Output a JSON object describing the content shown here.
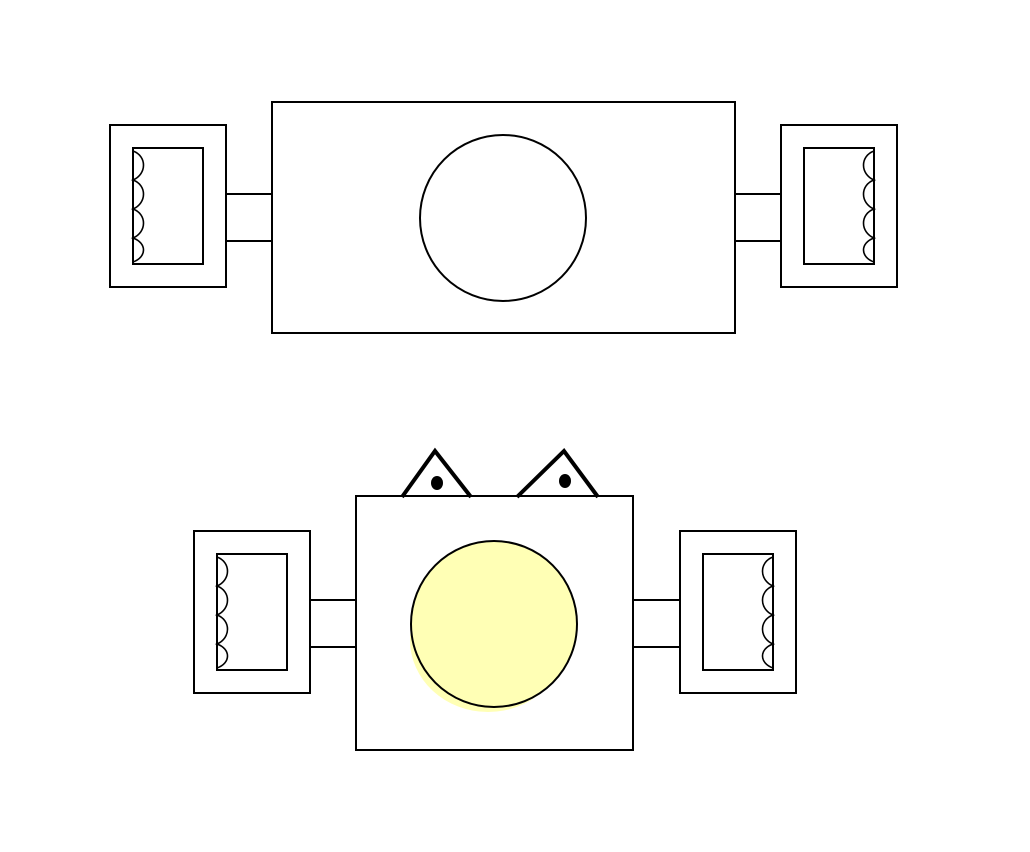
{
  "diagram": {
    "stroke_color": "#000000",
    "background_color": "#ffffff",
    "lamp_color": "#ffffb5",
    "top_device": {
      "lamp_lit": false,
      "indicator_eyes": false
    },
    "bottom_device": {
      "lamp_lit": true,
      "indicator_eyes": true
    },
    "icons": [
      "coil-icon",
      "lamp-icon",
      "eye-icon"
    ]
  }
}
